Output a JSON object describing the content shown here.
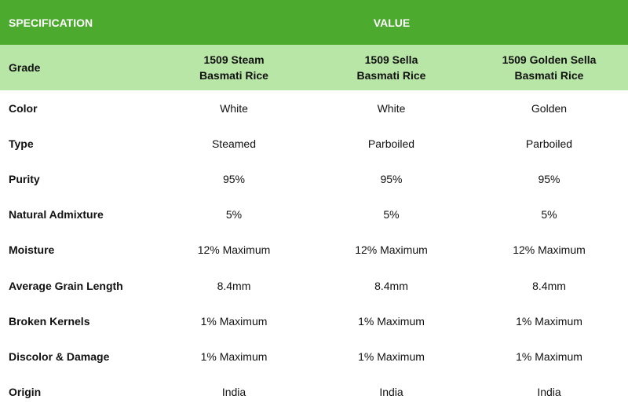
{
  "header": {
    "spec_label": "SPECIFICATION",
    "value_label": "VALUE"
  },
  "grade": {
    "label": "Grade",
    "products": [
      {
        "line1": "1509 Steam",
        "line2": "Basmati Rice"
      },
      {
        "line1": "1509 Sella",
        "line2": "Basmati Rice"
      },
      {
        "line1": "1509 Golden Sella",
        "line2": "Basmati Rice"
      }
    ]
  },
  "rows": [
    {
      "label": "Color",
      "values": [
        "White",
        "White",
        "Golden"
      ]
    },
    {
      "label": "Type",
      "values": [
        "Steamed",
        "Parboiled",
        "Parboiled"
      ]
    },
    {
      "label": "Purity",
      "values": [
        "95%",
        "95%",
        "95%"
      ]
    },
    {
      "label": "Natural Admixture",
      "values": [
        "5%",
        "5%",
        "5%"
      ]
    },
    {
      "label": "Moisture",
      "values": [
        "12% Maximum",
        "12% Maximum",
        "12% Maximum"
      ]
    },
    {
      "label": "Average Grain Length",
      "values": [
        "8.4mm",
        "8.4mm",
        "8.4mm"
      ]
    },
    {
      "label": "Broken Kernels",
      "values": [
        "1% Maximum",
        "1% Maximum",
        "1% Maximum"
      ]
    },
    {
      "label": "Discolor & Damage",
      "values": [
        "1% Maximum",
        "1% Maximum",
        "1% Maximum"
      ]
    },
    {
      "label": "Origin",
      "values": [
        "India",
        "India",
        "India"
      ]
    }
  ],
  "colors": {
    "header_bg": "#4caa2e",
    "grade_bg": "#b8e6a6",
    "body_bg": "#ffffff"
  }
}
